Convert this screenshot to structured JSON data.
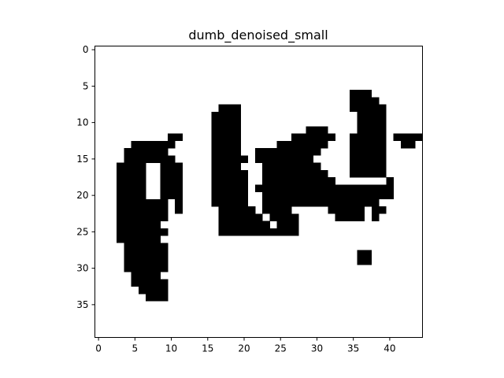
{
  "chart_data": {
    "type": "heatmap",
    "title": "dumb_denoised_small",
    "xlabel": "",
    "ylabel": "",
    "grid": false,
    "colormap": "gray",
    "colors": {
      "on": "#000000",
      "off": "#ffffff"
    },
    "xlim": [
      -0.5,
      44.5
    ],
    "ylim": [
      39.5,
      -0.5
    ],
    "x_ticks": [
      0,
      5,
      10,
      15,
      20,
      25,
      30,
      35,
      40
    ],
    "y_ticks": [
      0,
      5,
      10,
      15,
      20,
      25,
      30,
      35
    ],
    "width": 45,
    "height": 40,
    "pixels": [
      ".............................................",
      ".............................................",
      ".............................................",
      ".............................................",
      ".............................................",
      ".............................................",
      "...................................###.......",
      "...................................####......",
      ".................###...............#####.....",
      "................####................####.....",
      "................####................####.....",
      "................####.........###....####.....",
      "..........##....####.......######..#####.####",
      ".....######.....####.....#######...#####..##.",
      "....######......####..#########....#####.....",
      "....#######.....#####.########.....#####.....",
      "...####..###....####...########....#####.....",
      "...####..###....#####..#########...#####.....",
      "...####..###....#####..##########.......#....",
      "...####..###....#####.###################....",
      "...####..###....#####..##################....",
      "...#######.#....#####..################......",
      "...#######.#.....#####.####.....#####.##.....",
      "...#######.......######.####.....####.#......",
      "...######........#######.###.................",
      "...#######.......###########.................",
      "...######....................................",
      "....######...................................",
      "....######..........................##.......",
      "....######..........................##.......",
      "....######...................................",
      ".....####....................................",
      ".....#####...................................",
      "......####...................................",
      ".......###...................................",
      ".............................................",
      ".............................................",
      ".............................................",
      ".............................................",
      "............................................."
    ]
  }
}
